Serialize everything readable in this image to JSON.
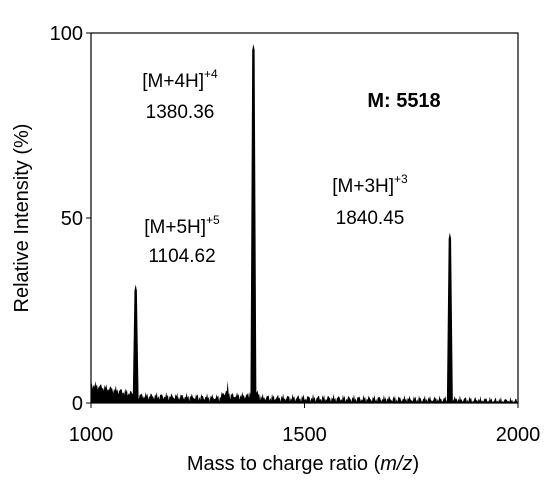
{
  "chart_data": {
    "type": "line",
    "title": "",
    "xlabel": "Mass to charge ratio (m/z)",
    "ylabel": "Relative Intensity (%)",
    "xlim": [
      1000,
      2000
    ],
    "ylim": [
      0,
      100
    ],
    "xticks": [
      1000,
      1500,
      2000
    ],
    "yticks": [
      0,
      50,
      100
    ],
    "grid": false,
    "series": [
      {
        "x": [
          1000,
          1100,
          1102,
          1104.62,
          1107,
          1110,
          1300,
          1315,
          1320,
          1325,
          1370,
          1375,
          1378,
          1380.36,
          1383,
          1386,
          1400,
          1800,
          1836,
          1838,
          1840.45,
          1843,
          1846,
          2000
        ],
        "y": [
          5,
          2.5,
          12,
          32,
          10,
          2,
          1.5,
          3,
          5,
          2,
          2,
          5,
          55,
          97,
          40,
          3,
          1.5,
          1,
          1,
          20,
          46,
          15,
          1,
          0.5
        ]
      }
    ],
    "peaks": [
      {
        "ion": "[M+5H]",
        "charge": "+5",
        "mz": "1104.62",
        "value": 32
      },
      {
        "ion": "[M+4H]",
        "charge": "+4",
        "mz": "1380.36",
        "value": 97
      },
      {
        "ion": "[M+3H]",
        "charge": "+3",
        "mz": "1840.45",
        "value": 46
      }
    ],
    "annotation": "M: 5518"
  }
}
